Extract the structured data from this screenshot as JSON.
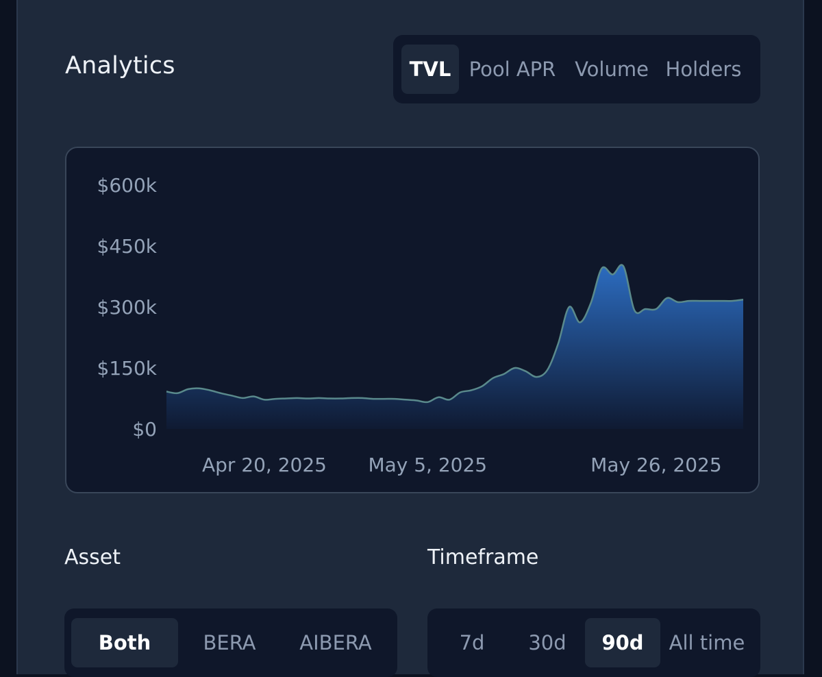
{
  "header": {
    "title": "Analytics"
  },
  "metric_tabs": [
    {
      "label": "TVL",
      "active": true
    },
    {
      "label": "Pool APR",
      "active": false
    },
    {
      "label": "Volume",
      "active": false
    },
    {
      "label": "Holders",
      "active": false
    }
  ],
  "chart_data": {
    "type": "area",
    "y_ticks": [
      "$600k",
      "$450k",
      "$300k",
      "$150k",
      "$0"
    ],
    "x_ticks": [
      "Apr 20, 2025",
      "May 5, 2025",
      "May 26, 2025"
    ],
    "ylim": [
      0,
      600000
    ],
    "x": [
      "2025-04-11",
      "2025-04-12",
      "2025-04-13",
      "2025-04-14",
      "2025-04-15",
      "2025-04-16",
      "2025-04-17",
      "2025-04-18",
      "2025-04-19",
      "2025-04-20",
      "2025-04-21",
      "2025-04-22",
      "2025-04-23",
      "2025-04-24",
      "2025-04-25",
      "2025-04-26",
      "2025-04-27",
      "2025-04-28",
      "2025-04-29",
      "2025-04-30",
      "2025-05-01",
      "2025-05-02",
      "2025-05-03",
      "2025-05-04",
      "2025-05-05",
      "2025-05-06",
      "2025-05-07",
      "2025-05-08",
      "2025-05-09",
      "2025-05-10",
      "2025-05-11",
      "2025-05-12",
      "2025-05-13",
      "2025-05-14",
      "2025-05-15",
      "2025-05-16",
      "2025-05-17",
      "2025-05-18",
      "2025-05-19",
      "2025-05-20",
      "2025-05-21",
      "2025-05-22",
      "2025-05-23",
      "2025-05-24",
      "2025-05-25",
      "2025-05-26",
      "2025-05-27",
      "2025-05-28",
      "2025-05-29",
      "2025-05-30",
      "2025-05-31",
      "2025-06-01",
      "2025-06-02",
      "2025-06-03"
    ],
    "values": [
      92000,
      88000,
      98000,
      100000,
      95000,
      88000,
      82000,
      76000,
      80000,
      72000,
      74000,
      75000,
      76000,
      75000,
      76000,
      75000,
      75000,
      76000,
      76000,
      74000,
      74000,
      74000,
      72000,
      70000,
      66000,
      78000,
      72000,
      90000,
      95000,
      105000,
      125000,
      135000,
      150000,
      142000,
      128000,
      145000,
      210000,
      300000,
      262000,
      310000,
      395000,
      380000,
      400000,
      292000,
      295000,
      295000,
      322000,
      312000,
      315000,
      315000,
      315000,
      315000,
      315000,
      318000
    ],
    "line_color": "#5a8a8c",
    "fill_top_color": "#2c6cc0",
    "fill_bottom_color": "#0f1a32"
  },
  "asset": {
    "label": "Asset",
    "options": [
      {
        "label": "Both",
        "active": true
      },
      {
        "label": "BERA",
        "active": false
      },
      {
        "label": "AIBERA",
        "active": false
      }
    ]
  },
  "timeframe": {
    "label": "Timeframe",
    "options": [
      {
        "label": "7d",
        "active": false
      },
      {
        "label": "30d",
        "active": false
      },
      {
        "label": "90d",
        "active": true
      },
      {
        "label": "All time",
        "active": false
      }
    ]
  }
}
